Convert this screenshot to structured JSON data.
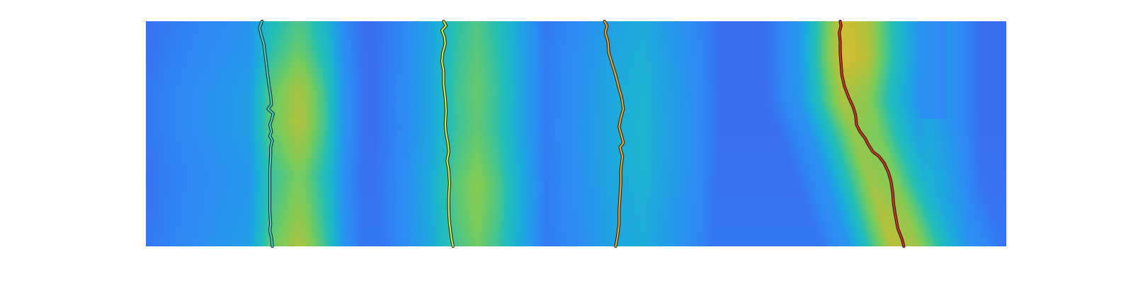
{
  "chart_data": {
    "type": "heatmap",
    "colormap": "parula",
    "colormap_stops": [
      "#3e26a8",
      "#4746eb",
      "#2e87f7",
      "#1caadf",
      "#24bfb5",
      "#74cc5e",
      "#c5bf32",
      "#fdbb3d",
      "#f9fb15"
    ],
    "background_color": "#3e26a8",
    "ridges": [
      {
        "columns": [
          [
            0.0,
            0.22
          ],
          [
            0.12,
            0.34
          ],
          [
            0.145,
            0.62
          ],
          [
            0.175,
            0.74
          ],
          [
            0.185,
            0.72
          ],
          [
            0.21,
            0.55
          ],
          [
            0.23,
            0.3
          ],
          [
            0.265,
            0.16
          ]
        ],
        "rows": [
          [
            0,
            0.3
          ],
          [
            0.12,
            0.45
          ],
          [
            0.3,
            0.85
          ],
          [
            0.45,
            0.9
          ],
          [
            0.52,
            0.8
          ],
          [
            0.68,
            0.55
          ],
          [
            0.8,
            0.65
          ],
          [
            0.92,
            0.78
          ],
          [
            1,
            0.9
          ]
        ]
      },
      {
        "columns": [
          [
            0.25,
            0.18
          ],
          [
            0.3,
            0.28
          ],
          [
            0.33,
            0.4
          ],
          [
            0.36,
            0.62
          ],
          [
            0.385,
            0.7
          ],
          [
            0.41,
            0.6
          ],
          [
            0.44,
            0.38
          ],
          [
            0.47,
            0.2
          ]
        ],
        "rows": [
          [
            0,
            0.45
          ],
          [
            0.2,
            0.55
          ],
          [
            0.3,
            0.6
          ],
          [
            0.45,
            0.55
          ],
          [
            0.62,
            0.7
          ],
          [
            0.72,
            0.82
          ],
          [
            0.88,
            0.75
          ],
          [
            1,
            0.65
          ]
        ]
      },
      {
        "columns": [
          [
            0.44,
            0.2
          ],
          [
            0.5,
            0.3
          ],
          [
            0.53,
            0.38
          ],
          [
            0.55,
            0.44
          ],
          [
            0.58,
            0.48
          ],
          [
            0.6,
            0.4
          ],
          [
            0.63,
            0.32
          ],
          [
            0.67,
            0.2
          ]
        ],
        "rows": [
          [
            0,
            0.3
          ],
          [
            0.2,
            0.5
          ],
          [
            0.45,
            0.62
          ],
          [
            0.6,
            0.6
          ],
          [
            0.8,
            0.45
          ],
          [
            1,
            0.35
          ]
        ]
      },
      {
        "columns": [
          [
            0.72,
            0.2
          ],
          [
            0.76,
            0.32
          ],
          [
            0.79,
            0.62
          ],
          [
            0.81,
            0.8
          ],
          [
            0.84,
            0.74
          ],
          [
            0.87,
            0.5
          ],
          [
            0.9,
            0.3
          ],
          [
            0.95,
            0.2
          ]
        ],
        "rows": [
          [
            0,
            0.9
          ],
          [
            0.15,
            0.95
          ],
          [
            0.3,
            0.72
          ],
          [
            0.5,
            0.55
          ],
          [
            0.7,
            0.6
          ],
          [
            0.85,
            0.72
          ],
          [
            1,
            0.78
          ]
        ]
      },
      {
        "columns": [
          [
            0.84,
            0.22
          ],
          [
            0.88,
            0.34
          ],
          [
            0.91,
            0.5
          ],
          [
            0.94,
            0.36
          ],
          [
            0.97,
            0.22
          ]
        ],
        "rows": [
          [
            0,
            0.0
          ],
          [
            0.4,
            0.0
          ],
          [
            0.6,
            0.3
          ],
          [
            0.78,
            0.55
          ],
          [
            0.9,
            0.9
          ],
          [
            1,
            1.0
          ]
        ]
      }
    ],
    "tracks": [
      {
        "color": "#3fd6cc",
        "points": [
          [
            0.135,
            0.0
          ],
          [
            0.132,
            0.03
          ],
          [
            0.134,
            0.06
          ],
          [
            0.137,
            0.1
          ],
          [
            0.139,
            0.16
          ],
          [
            0.141,
            0.22
          ],
          [
            0.143,
            0.28
          ],
          [
            0.145,
            0.33
          ],
          [
            0.146,
            0.37
          ],
          [
            0.142,
            0.39
          ],
          [
            0.148,
            0.41
          ],
          [
            0.146,
            0.44
          ],
          [
            0.144,
            0.46
          ],
          [
            0.146,
            0.49
          ],
          [
            0.144,
            0.51
          ],
          [
            0.147,
            0.53
          ],
          [
            0.145,
            0.56
          ],
          [
            0.145,
            0.6
          ],
          [
            0.144,
            0.66
          ],
          [
            0.144,
            0.72
          ],
          [
            0.144,
            0.78
          ],
          [
            0.144,
            0.84
          ],
          [
            0.145,
            0.9
          ],
          [
            0.144,
            0.93
          ],
          [
            0.146,
            0.96
          ],
          [
            0.147,
            1.0
          ]
        ]
      },
      {
        "color": "#d6f03f",
        "points": [
          [
            0.346,
            0.0
          ],
          [
            0.349,
            0.02
          ],
          [
            0.344,
            0.04
          ],
          [
            0.347,
            0.07
          ],
          [
            0.348,
            0.1
          ],
          [
            0.345,
            0.14
          ],
          [
            0.344,
            0.18
          ],
          [
            0.346,
            0.22
          ],
          [
            0.346,
            0.28
          ],
          [
            0.348,
            0.34
          ],
          [
            0.349,
            0.4
          ],
          [
            0.348,
            0.46
          ],
          [
            0.349,
            0.5
          ],
          [
            0.351,
            0.54
          ],
          [
            0.352,
            0.58
          ],
          [
            0.35,
            0.62
          ],
          [
            0.352,
            0.66
          ],
          [
            0.353,
            0.72
          ],
          [
            0.352,
            0.78
          ],
          [
            0.352,
            0.84
          ],
          [
            0.353,
            0.9
          ],
          [
            0.355,
            0.96
          ],
          [
            0.357,
            1.0
          ]
        ]
      },
      {
        "color": "#f5a623",
        "points": [
          [
            0.533,
            0.0
          ],
          [
            0.536,
            0.02
          ],
          [
            0.534,
            0.05
          ],
          [
            0.537,
            0.09
          ],
          [
            0.538,
            0.14
          ],
          [
            0.542,
            0.19
          ],
          [
            0.546,
            0.24
          ],
          [
            0.55,
            0.3
          ],
          [
            0.553,
            0.34
          ],
          [
            0.555,
            0.39
          ],
          [
            0.552,
            0.43
          ],
          [
            0.55,
            0.47
          ],
          [
            0.553,
            0.51
          ],
          [
            0.555,
            0.54
          ],
          [
            0.551,
            0.56
          ],
          [
            0.554,
            0.6
          ],
          [
            0.552,
            0.66
          ],
          [
            0.552,
            0.72
          ],
          [
            0.551,
            0.78
          ],
          [
            0.55,
            0.84
          ],
          [
            0.55,
            0.9
          ],
          [
            0.548,
            0.96
          ],
          [
            0.546,
            1.0
          ]
        ]
      },
      {
        "color": "#e02b1e",
        "points": [
          [
            0.807,
            0.0
          ],
          [
            0.808,
            0.02
          ],
          [
            0.806,
            0.05
          ],
          [
            0.807,
            0.09
          ],
          [
            0.807,
            0.14
          ],
          [
            0.808,
            0.19
          ],
          [
            0.809,
            0.24
          ],
          [
            0.812,
            0.29
          ],
          [
            0.817,
            0.34
          ],
          [
            0.822,
            0.38
          ],
          [
            0.825,
            0.42
          ],
          [
            0.826,
            0.46
          ],
          [
            0.83,
            0.49
          ],
          [
            0.836,
            0.52
          ],
          [
            0.84,
            0.55
          ],
          [
            0.845,
            0.58
          ],
          [
            0.852,
            0.6
          ],
          [
            0.858,
            0.63
          ],
          [
            0.863,
            0.67
          ],
          [
            0.866,
            0.71
          ],
          [
            0.868,
            0.76
          ],
          [
            0.869,
            0.81
          ],
          [
            0.871,
            0.86
          ],
          [
            0.874,
            0.92
          ],
          [
            0.879,
            0.97
          ],
          [
            0.881,
            1.0
          ]
        ]
      }
    ]
  }
}
